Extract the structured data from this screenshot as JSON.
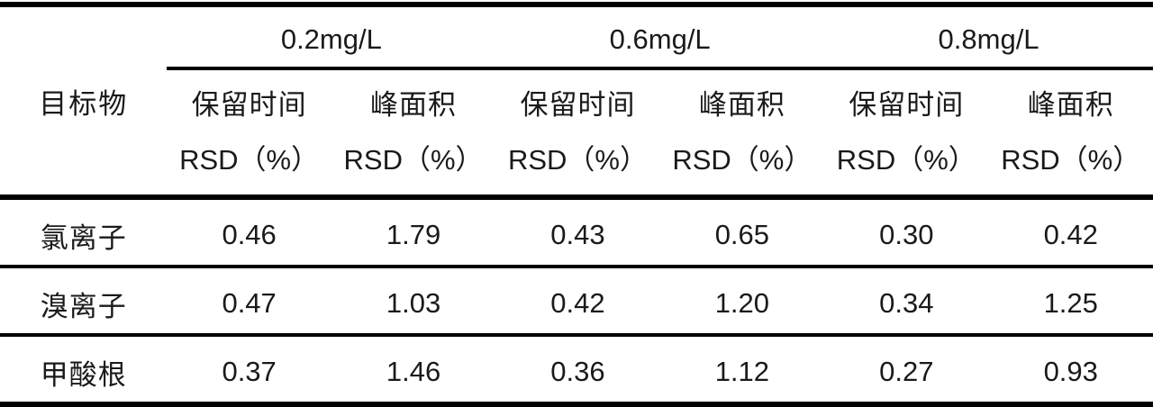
{
  "colors": {
    "background": "#ffffff",
    "text": "#1a1a1a",
    "rule": "#000000"
  },
  "table": {
    "corner_label": "目标物",
    "concentration_groups": [
      {
        "label": "0.2mg/L"
      },
      {
        "label": "0.6mg/L"
      },
      {
        "label": "0.8mg/L"
      }
    ],
    "metric_headers": {
      "retention_time": "保留时间",
      "peak_area": "峰面积",
      "unit_line": "RSD（%）"
    },
    "rows": [
      {
        "analyte": "氯离子",
        "values": [
          "0.46",
          "1.79",
          "0.43",
          "0.65",
          "0.30",
          "0.42"
        ]
      },
      {
        "analyte": "溴离子",
        "values": [
          "0.47",
          "1.03",
          "0.42",
          "1.20",
          "0.34",
          "1.25"
        ]
      },
      {
        "analyte": "甲酸根",
        "values": [
          "0.37",
          "1.46",
          "0.36",
          "1.12",
          "0.27",
          "0.93"
        ]
      }
    ]
  },
  "chart_data": {
    "type": "table",
    "title": "",
    "row_header": "目标物",
    "column_groups": [
      "0.2mg/L",
      "0.6mg/L",
      "0.8mg/L"
    ],
    "columns": [
      "目标物",
      "0.2mg/L 保留时间RSD（%）",
      "0.2mg/L 峰面积RSD（%）",
      "0.6mg/L 保留时间RSD（%）",
      "0.6mg/L 峰面积RSD（%）",
      "0.8mg/L 保留时间RSD（%）",
      "0.8mg/L 峰面积RSD（%）"
    ],
    "rows": [
      [
        "氯离子",
        0.46,
        1.79,
        0.43,
        0.65,
        0.3,
        0.42
      ],
      [
        "溴离子",
        0.47,
        1.03,
        0.42,
        1.2,
        0.34,
        1.25
      ],
      [
        "甲酸根",
        0.37,
        1.46,
        0.36,
        1.12,
        0.27,
        0.93
      ]
    ]
  }
}
